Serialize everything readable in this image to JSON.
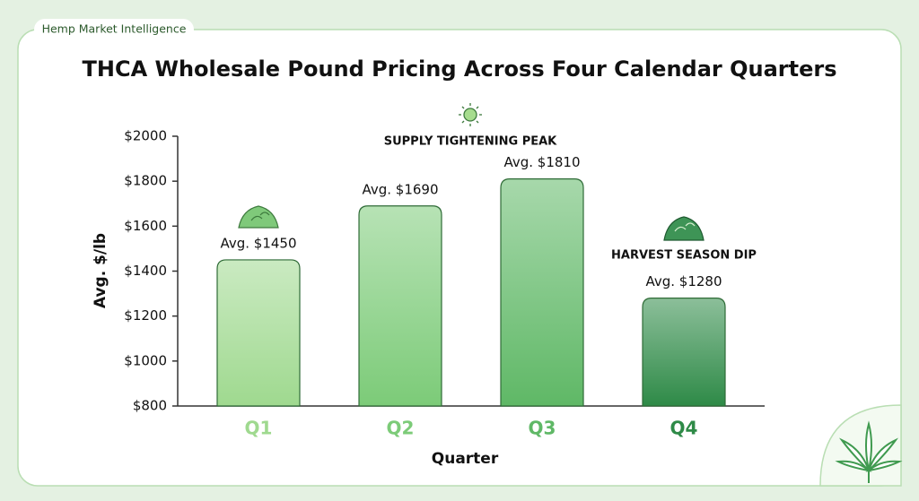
{
  "header": {
    "badge": "Hemp Market Intelligence"
  },
  "chart_data": {
    "type": "bar",
    "title": "THCA Wholesale Pound Pricing Across Four Calendar Quarters",
    "x_label": "Quarter",
    "y_label": "Avg. $/lb",
    "categories": [
      "Q1",
      "Q2",
      "Q3",
      "Q4"
    ],
    "values": [
      1450,
      1690,
      1810,
      1280
    ],
    "value_labels": [
      "Avg. $1450",
      "Avg. $1690",
      "Avg. $1810",
      "Avg. $1280"
    ],
    "colors": [
      "#9fd98f",
      "#7ccb78",
      "#5fb866",
      "#2e8a47"
    ],
    "ylim": [
      800,
      2000
    ],
    "yticks": [
      {
        "value": 800,
        "label": "$800"
      },
      {
        "value": 1000,
        "label": "$1000"
      },
      {
        "value": 1200,
        "label": "$1200"
      },
      {
        "value": 1400,
        "label": "$1400"
      },
      {
        "value": 1600,
        "label": "$1600"
      },
      {
        "value": 1800,
        "label": "$1800"
      },
      {
        "value": 2000,
        "label": "$2000"
      }
    ],
    "annotations": [
      "SUPPLY TIGHTENING PEAK",
      "HARVEST SEASON DIP"
    ],
    "grid": false
  }
}
